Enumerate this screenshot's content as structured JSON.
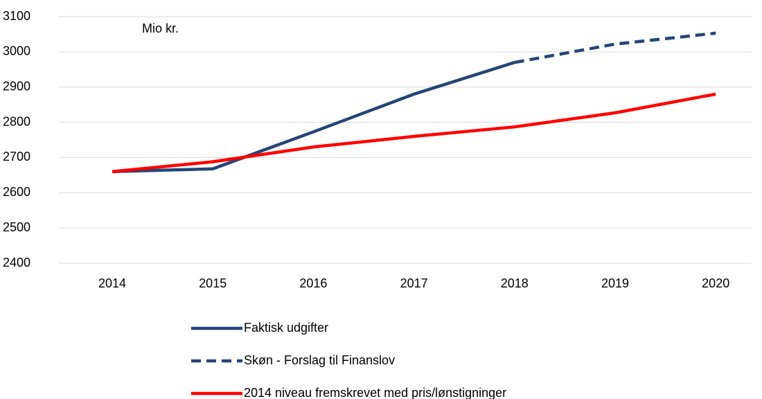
{
  "chart_data": {
    "type": "line",
    "annotation": "Mio kr.",
    "categories": [
      "2014",
      "2015",
      "2016",
      "2017",
      "2018",
      "2019",
      "2020"
    ],
    "series": [
      {
        "name": "Faktisk udgifter",
        "color": "#264478",
        "dashed": false,
        "values": [
          2660,
          2668,
          2773,
          2880,
          2970,
          null,
          null
        ]
      },
      {
        "name": "Skøn - Forslag til Finanslov",
        "color": "#264478",
        "dashed": true,
        "values": [
          null,
          null,
          null,
          null,
          2970,
          3022,
          3053
        ]
      },
      {
        "name": "2014 niveau fremskrevet med pris/lønstigninger",
        "color": "#ff0000",
        "dashed": false,
        "values": [
          2660,
          2688,
          2730,
          2760,
          2787,
          2827,
          2880
        ]
      }
    ],
    "ylim": [
      2400,
      3100
    ],
    "yticks": [
      2400,
      2500,
      2600,
      2700,
      2800,
      2900,
      3000,
      3100
    ],
    "grid": true
  }
}
